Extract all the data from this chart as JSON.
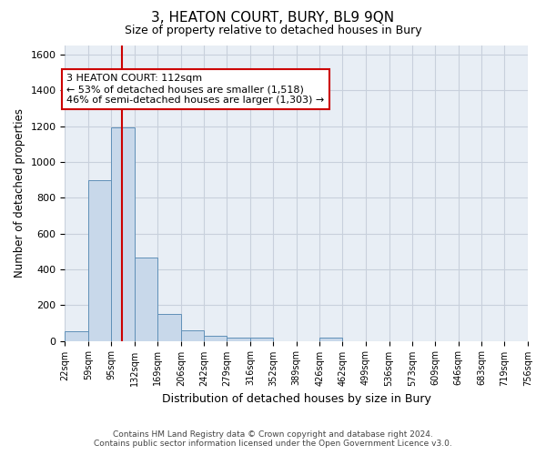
{
  "title": "3, HEATON COURT, BURY, BL9 9QN",
  "subtitle": "Size of property relative to detached houses in Bury",
  "xlabel": "Distribution of detached houses by size in Bury",
  "ylabel": "Number of detached properties",
  "footer_line1": "Contains HM Land Registry data © Crown copyright and database right 2024.",
  "footer_line2": "Contains public sector information licensed under the Open Government Licence v3.0.",
  "annotation_line1": "3 HEATON COURT: 112sqm",
  "annotation_line2": "← 53% of detached houses are smaller (1,518)",
  "annotation_line3": "46% of semi-detached houses are larger (1,303) →",
  "property_size": 112,
  "bar_edges": [
    22,
    59,
    95,
    132,
    169,
    206,
    242,
    279,
    316,
    352,
    389,
    426,
    462,
    499,
    536,
    573,
    609,
    646,
    683,
    719,
    756
  ],
  "bar_heights": [
    55,
    900,
    1190,
    465,
    150,
    60,
    30,
    20,
    20,
    0,
    0,
    20,
    0,
    0,
    0,
    0,
    0,
    0,
    0,
    0
  ],
  "bar_color": "#c8d8ea",
  "bar_edge_color": "#6090b8",
  "red_line_color": "#cc0000",
  "annotation_box_color": "#cc0000",
  "grid_color": "#c8d0dc",
  "background_color": "#ffffff",
  "plot_bg_color": "#e8eef5",
  "ylim": [
    0,
    1650
  ],
  "yticks": [
    0,
    200,
    400,
    600,
    800,
    1000,
    1200,
    1400,
    1600
  ]
}
